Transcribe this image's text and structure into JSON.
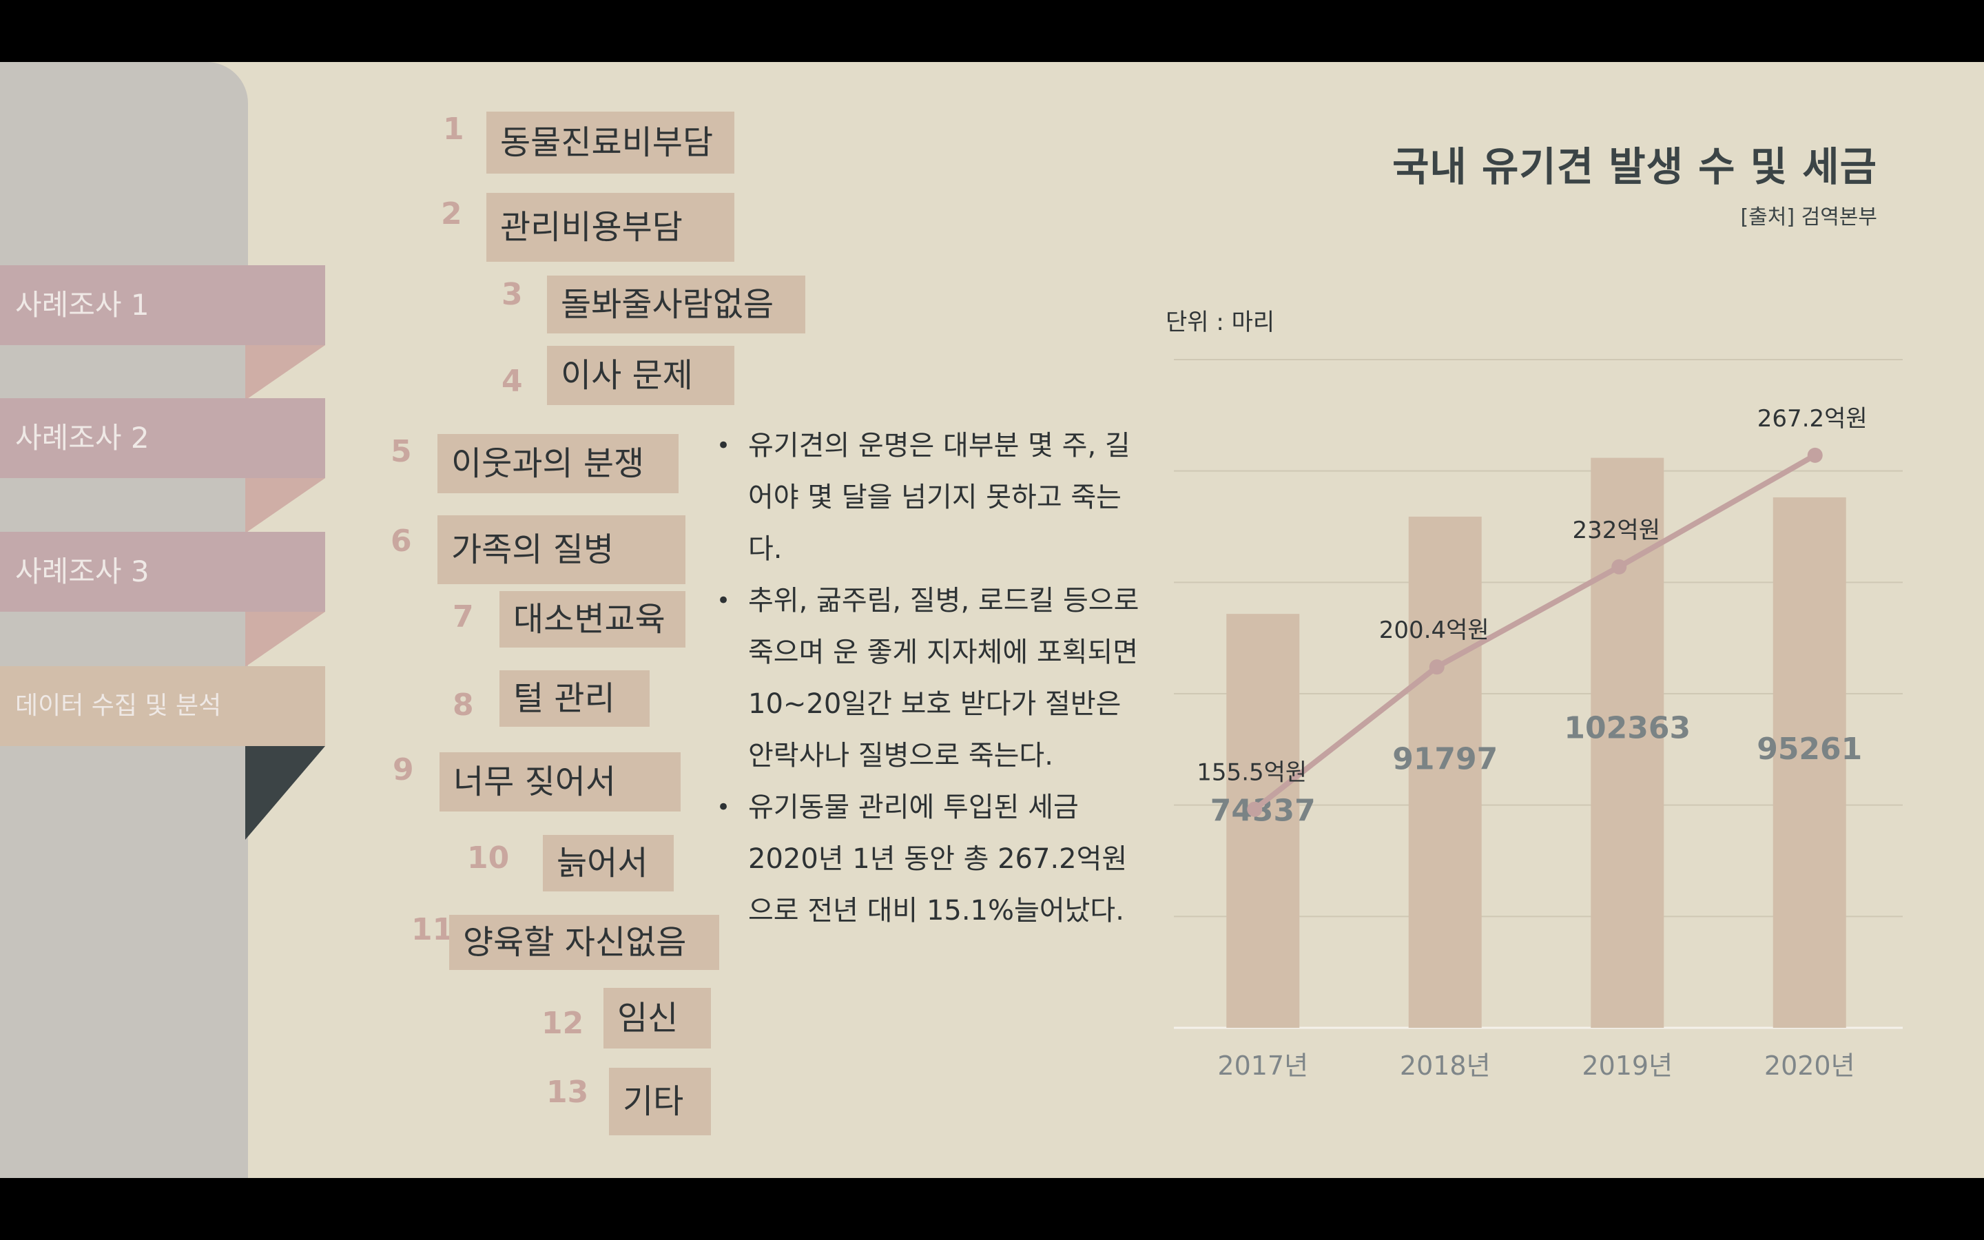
{
  "sidebar": {
    "items": [
      {
        "label": "사례조사 1",
        "color": "#c3a9ab"
      },
      {
        "label": "사례조사 2",
        "color": "#c3a9ab"
      },
      {
        "label": "사례조사 3",
        "color": "#c3a9ab"
      },
      {
        "label": "데이터 수집 및 분석",
        "color": "#d2beaa"
      }
    ]
  },
  "reasons": [
    {
      "num": "1",
      "label": "동물진료비부담"
    },
    {
      "num": "2",
      "label": "관리비용부담"
    },
    {
      "num": "3",
      "label": "돌봐줄사람없음"
    },
    {
      "num": "4",
      "label": "이사 문제"
    },
    {
      "num": "5",
      "label": "이웃과의 분쟁"
    },
    {
      "num": "6",
      "label": "가족의 질병"
    },
    {
      "num": "7",
      "label": "대소변교육"
    },
    {
      "num": "8",
      "label": "털 관리"
    },
    {
      "num": "9",
      "label": "너무 짖어서"
    },
    {
      "num": "10",
      "label": "늙어서"
    },
    {
      "num": "11",
      "label": "양육할 자신없음"
    },
    {
      "num": "12",
      "label": "임신"
    },
    {
      "num": "13",
      "label": "기타"
    }
  ],
  "bullets": [
    "유기견의 운명은 대부분 몇 주, 길어야 몇 달을 넘기지 못하고 죽는다.",
    "추위, 굶주림, 질병, 로드킬 등으로 죽으며 운 좋게 지자체에 포획되면 10~20일간 보호 받다가 절반은 안락사나 질병으로 죽는다.",
    "유기동물 관리에 투입된 세금 2020년 1년 동안 총 267.2억원으로 전년 대비 15.1%늘어났다."
  ],
  "chart_data": {
    "type": "bar",
    "title": "국내 유기견 발생 수 및 세금",
    "source": "[출처] 검역본부",
    "unit_label": "단위 : 마리",
    "categories": [
      "2017년",
      "2018년",
      "2019년",
      "2020년"
    ],
    "series": [
      {
        "type": "bar",
        "values": [
          74337,
          91797,
          102363,
          95261
        ],
        "color": "#d2beaa"
      },
      {
        "type": "line",
        "values": [
          155.5,
          200.4,
          232,
          267.2
        ],
        "labels": [
          "155.5억원",
          "200.4억원",
          "232억원",
          "267.2억원"
        ],
        "color": "#c3a2a0"
      }
    ],
    "ylim": [
      0,
      120000
    ],
    "grid": true
  }
}
